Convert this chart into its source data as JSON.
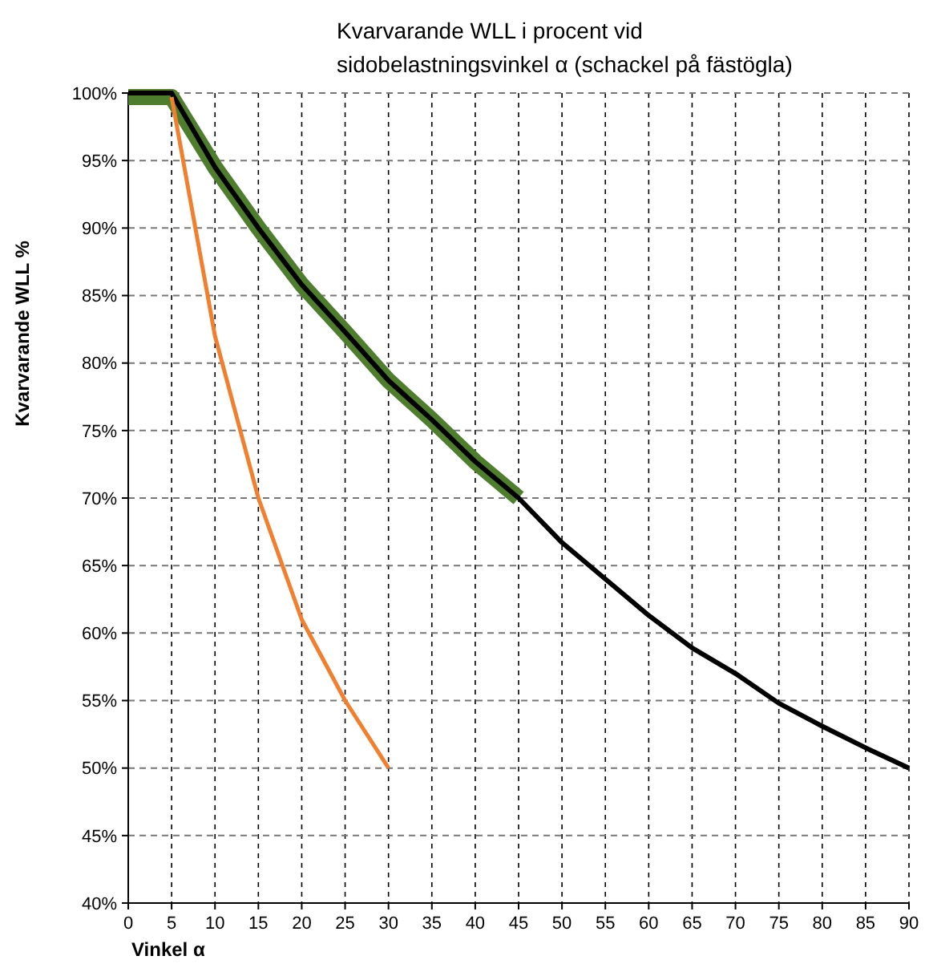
{
  "chart_data": {
    "type": "line",
    "title": "Kvarvarande WLL i procent vid sidobelastningsvinkel α (schackel på fästögla)",
    "xlabel": "Vinkel α",
    "ylabel": "Kvarvarande WLL %",
    "series": [
      {
        "color": "#4e7d2e",
        "x": [
          0,
          5,
          10,
          15,
          20,
          25,
          30,
          35,
          40,
          45
        ],
        "values": [
          99.7,
          99.7,
          94.5,
          90,
          85.8,
          82.3,
          78.7,
          75.8,
          72.7,
          70
        ]
      },
      {
        "color": "#000000",
        "x": [
          0,
          5,
          10,
          15,
          20,
          25,
          30,
          35,
          40,
          45,
          50,
          55,
          60,
          65,
          70,
          75,
          80,
          85,
          90
        ],
        "values": [
          100,
          100,
          94.5,
          90,
          85.8,
          82.3,
          78.7,
          75.8,
          72.7,
          70,
          66.7,
          64,
          61.3,
          58.9,
          57,
          54.8,
          53.1,
          51.5,
          50
        ]
      },
      {
        "color": "#f08030",
        "x": [
          5,
          10,
          15,
          20,
          25,
          30
        ],
        "values": [
          99.7,
          82,
          70,
          61,
          55,
          50
        ]
      }
    ],
    "xlim": [
      0,
      90
    ],
    "xticks": [
      0,
      5,
      10,
      15,
      20,
      25,
      30,
      35,
      40,
      45,
      50,
      55,
      60,
      65,
      70,
      75,
      80,
      85,
      90
    ],
    "ylim": [
      40,
      100
    ],
    "yticks": [
      {
        "value": 40,
        "label": "40%"
      },
      {
        "value": 45,
        "label": "45%"
      },
      {
        "value": 50,
        "label": "50%"
      },
      {
        "value": 55,
        "label": "55%"
      },
      {
        "value": 60,
        "label": "60%"
      },
      {
        "value": 65,
        "label": "65%"
      },
      {
        "value": 70,
        "label": "70%"
      },
      {
        "value": 75,
        "label": "75%"
      },
      {
        "value": 80,
        "label": "80%"
      },
      {
        "value": 85,
        "label": "85%"
      },
      {
        "value": 90,
        "label": "90%"
      },
      {
        "value": 95,
        "label": "95%"
      },
      {
        "value": 100,
        "label": "100%"
      }
    ],
    "grid": true,
    "marker": "none",
    "line_style": "solid"
  }
}
